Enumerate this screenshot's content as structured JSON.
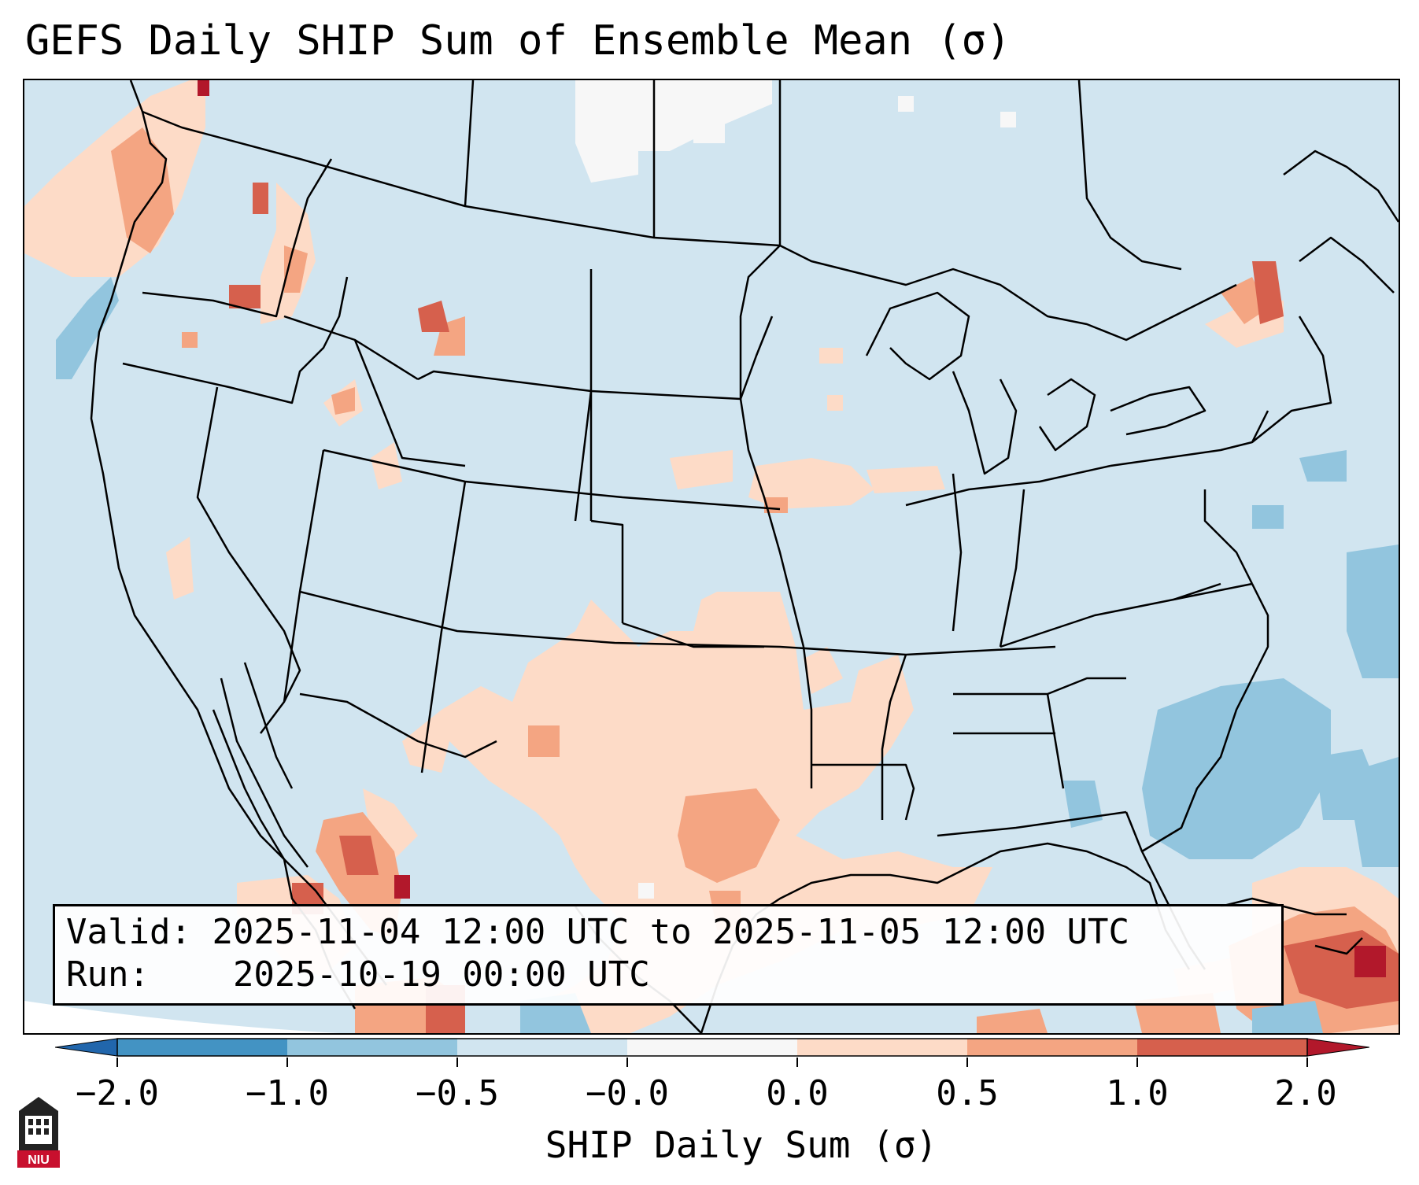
{
  "title": "GEFS Daily SHIP Sum of Ensemble Mean (σ)",
  "info": {
    "valid_label": "Valid:",
    "valid_value": "2025-11-04 12:00 UTC to 2025-11-05 12:00 UTC",
    "run_label": "Run:",
    "run_value": "2025-10-19 00:00 UTC"
  },
  "colorbar": {
    "label": "SHIP Daily Sum (σ)",
    "ticks": [
      "−2.0",
      "−1.0",
      "−0.5",
      "−0.0",
      "0.0",
      "0.5",
      "1.0",
      "2.0"
    ],
    "colors": [
      "#2166ac",
      "#4393c3",
      "#92c5de",
      "#d1e5f0",
      "#f7f7f7",
      "#fddbc7",
      "#f4a582",
      "#d6604d",
      "#b2182b"
    ],
    "extend": "both"
  },
  "logo": {
    "text": "NIU",
    "icon": "niu-logo-icon"
  },
  "map": {
    "region": "Continental United States",
    "background_class": "-0.5 to 0.0",
    "icon": "us-map"
  }
}
